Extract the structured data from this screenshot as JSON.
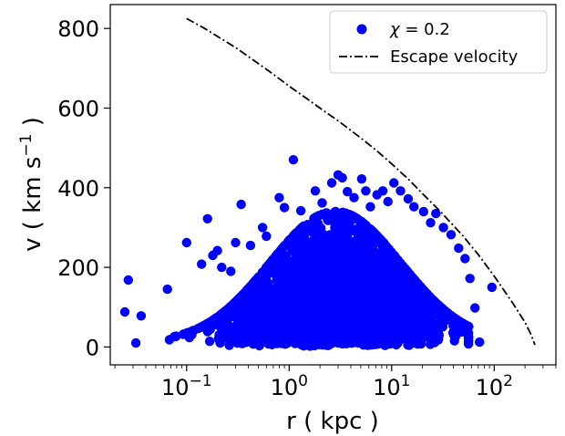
{
  "chart_data": {
    "type": "scatter",
    "xlabel": "r ( kpc )",
    "ylabel_main": "v ( km s",
    "ylabel_sup": "−1",
    "ylabel_end": " )",
    "x_scale": "log",
    "xlim": [
      0.018,
      400
    ],
    "ylim": [
      -45,
      860
    ],
    "x_ticks": [
      {
        "value": 0.1,
        "base": "10",
        "exp": "−1"
      },
      {
        "value": 1,
        "base": "10",
        "exp": "0"
      },
      {
        "value": 10,
        "base": "10",
        "exp": "1"
      },
      {
        "value": 100,
        "base": "10",
        "exp": "2"
      }
    ],
    "y_ticks": [
      0,
      200,
      400,
      600,
      800
    ],
    "grid": false,
    "legend_position": "top-right",
    "series": [
      {
        "name": "χ = 0.2",
        "legend_symbol": "χ",
        "legend_value": " = 0.2",
        "kind": "scatter",
        "color": "#0000ff",
        "cloud": {
          "log_r_center": 0.45,
          "log_r_spread": 0.5,
          "v_typical": 150
        },
        "points": [
          [
            0.027,
            168
          ],
          [
            0.025,
            88
          ],
          [
            0.036,
            78
          ],
          [
            0.032,
            10
          ],
          [
            0.065,
            145
          ],
          [
            0.068,
            18
          ],
          [
            0.1,
            262
          ],
          [
            0.16,
            322
          ],
          [
            0.2,
            242
          ],
          [
            0.14,
            208
          ],
          [
            0.18,
            230
          ],
          [
            0.22,
            200
          ],
          [
            0.34,
            358
          ],
          [
            0.3,
            262
          ],
          [
            0.27,
            190
          ],
          [
            0.42,
            255
          ],
          [
            0.6,
            278
          ],
          [
            0.55,
            300
          ],
          [
            0.8,
            375
          ],
          [
            0.9,
            350
          ],
          [
            1.1,
            470
          ],
          [
            1.3,
            342
          ],
          [
            1.8,
            392
          ],
          [
            2.1,
            362
          ],
          [
            2.6,
            412
          ],
          [
            3.0,
            432
          ],
          [
            3.3,
            425
          ],
          [
            3.7,
            390
          ],
          [
            4.3,
            375
          ],
          [
            5.1,
            422
          ],
          [
            5.6,
            392
          ],
          [
            6.2,
            352
          ],
          [
            7.2,
            382
          ],
          [
            8.2,
            392
          ],
          [
            9.2,
            365
          ],
          [
            10.5,
            412
          ],
          [
            12.2,
            392
          ],
          [
            14.5,
            372
          ],
          [
            16.5,
            352
          ],
          [
            20.5,
            340
          ],
          [
            24,
            312
          ],
          [
            27,
            335
          ],
          [
            32,
            300
          ],
          [
            38,
            282
          ],
          [
            45,
            248
          ],
          [
            52,
            222
          ],
          [
            58,
            172
          ],
          [
            65,
            98
          ],
          [
            72,
            12
          ],
          [
            95,
            150
          ]
        ]
      },
      {
        "name": "Escape velocity",
        "kind": "line",
        "color": "#000000",
        "points": [
          [
            0.1,
            825
          ],
          [
            0.15,
            800
          ],
          [
            0.2,
            780
          ],
          [
            0.3,
            752
          ],
          [
            0.5,
            712
          ],
          [
            0.7,
            685
          ],
          [
            1,
            655
          ],
          [
            1.5,
            623
          ],
          [
            2,
            600
          ],
          [
            3,
            568
          ],
          [
            5,
            525
          ],
          [
            7,
            495
          ],
          [
            10,
            460
          ],
          [
            15,
            418
          ],
          [
            20,
            385
          ],
          [
            30,
            340
          ],
          [
            50,
            278
          ],
          [
            70,
            232
          ],
          [
            100,
            178
          ],
          [
            150,
            112
          ],
          [
            200,
            62
          ],
          [
            230,
            30
          ],
          [
            250,
            5
          ]
        ]
      }
    ]
  }
}
